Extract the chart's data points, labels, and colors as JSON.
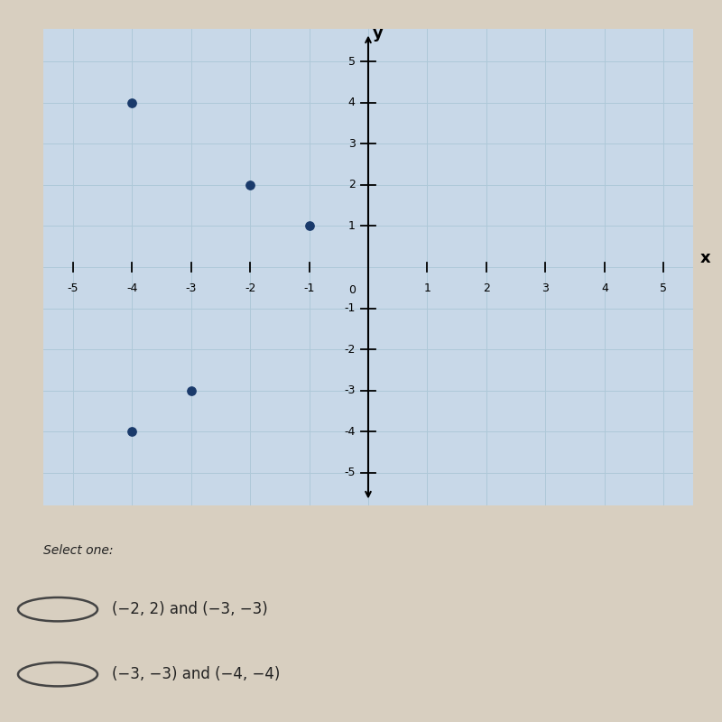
{
  "points": [
    [
      -4,
      4
    ],
    [
      -2,
      2
    ],
    [
      -1,
      1
    ],
    [
      -3,
      -3
    ],
    [
      -4,
      -4
    ]
  ],
  "point_color": "#1a3a6b",
  "point_size": 45,
  "xlim": [
    -5.5,
    5.5
  ],
  "ylim": [
    -5.8,
    5.8
  ],
  "xticks": [
    -5,
    -4,
    -3,
    -2,
    -1,
    0,
    1,
    2,
    3,
    4,
    5
  ],
  "yticks": [
    -5,
    -4,
    -3,
    -2,
    -1,
    1,
    2,
    3,
    4,
    5
  ],
  "grid_color": "#aec8d8",
  "grid_lw": 0.7,
  "axis_color": "#000000",
  "graph_bg": "#c8d8e8",
  "fig_bg": "#d8cfc0",
  "select_one_text": "Select one:",
  "choices": [
    "(−2, 2) and (−3, −3)",
    "(−3, −3) and (−4, −4)"
  ],
  "text_color": "#222222",
  "radio_color": "#444444"
}
